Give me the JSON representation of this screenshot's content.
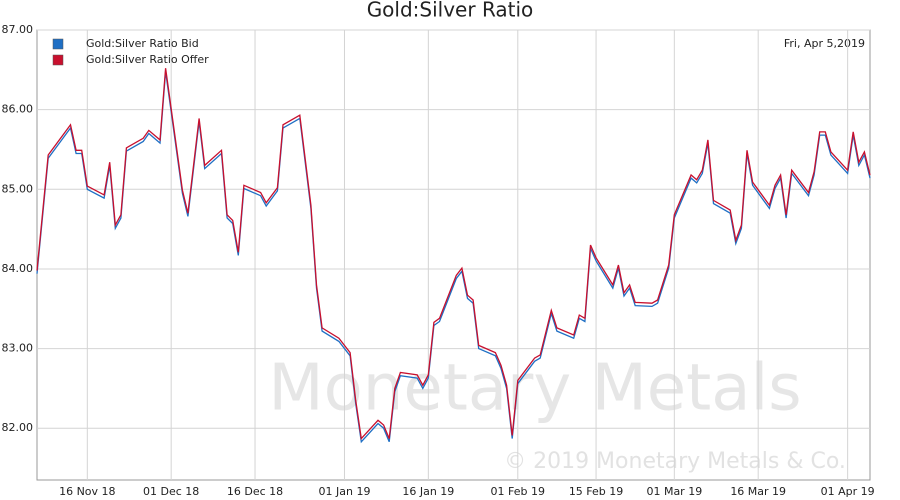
{
  "chart_data": {
    "type": "line",
    "title": "Gold:Silver Ratio",
    "annotation": "Fri, Apr 5,2019",
    "watermark": "Monetary Metals",
    "copyright": "© 2019 Monetary Metals & Co.",
    "x": [
      "2018-11-07",
      "2018-11-09",
      "2018-11-13",
      "2018-11-14",
      "2018-11-15",
      "2018-11-16",
      "2018-11-19",
      "2018-11-20",
      "2018-11-21",
      "2018-11-22",
      "2018-11-23",
      "2018-11-26",
      "2018-11-27",
      "2018-11-29",
      "2018-11-30",
      "2018-12-03",
      "2018-12-04",
      "2018-12-06",
      "2018-12-07",
      "2018-12-10",
      "2018-12-11",
      "2018-12-12",
      "2018-12-13",
      "2018-12-14",
      "2018-12-17",
      "2018-12-18",
      "2018-12-20",
      "2018-12-21",
      "2018-12-24",
      "2018-12-26",
      "2018-12-27",
      "2018-12-28",
      "2018-12-31",
      "2019-01-02",
      "2019-01-03",
      "2019-01-04",
      "2019-01-07",
      "2019-01-08",
      "2019-01-09",
      "2019-01-10",
      "2019-01-11",
      "2019-01-14",
      "2019-01-15",
      "2019-01-16",
      "2019-01-17",
      "2019-01-18",
      "2019-01-21",
      "2019-01-22",
      "2019-01-23",
      "2019-01-24",
      "2019-01-25",
      "2019-01-28",
      "2019-01-29",
      "2019-01-30",
      "2019-01-31",
      "2019-02-01",
      "2019-02-04",
      "2019-02-05",
      "2019-02-07",
      "2019-02-08",
      "2019-02-11",
      "2019-02-12",
      "2019-02-13",
      "2019-02-14",
      "2019-02-15",
      "2019-02-18",
      "2019-02-19",
      "2019-02-20",
      "2019-02-21",
      "2019-02-22",
      "2019-02-25",
      "2019-02-26",
      "2019-02-28",
      "2019-03-01",
      "2019-03-04",
      "2019-03-05",
      "2019-03-06",
      "2019-03-07",
      "2019-03-08",
      "2019-03-11",
      "2019-03-12",
      "2019-03-13",
      "2019-03-14",
      "2019-03-15",
      "2019-03-18",
      "2019-03-19",
      "2019-03-20",
      "2019-03-21",
      "2019-03-22",
      "2019-03-25",
      "2019-03-26",
      "2019-03-27",
      "2019-03-28",
      "2019-03-29",
      "2019-04-01",
      "2019-04-02",
      "2019-04-03",
      "2019-04-04",
      "2019-04-05"
    ],
    "series": [
      {
        "name": "Gold:Silver Ratio Bid",
        "color": "#1f6fc4",
        "values": [
          83.94,
          85.39,
          85.77,
          85.45,
          85.45,
          85.0,
          84.89,
          85.3,
          84.51,
          84.64,
          85.48,
          85.6,
          85.7,
          85.58,
          86.48,
          84.95,
          84.66,
          85.85,
          85.26,
          85.45,
          84.64,
          84.57,
          84.17,
          85.01,
          84.92,
          84.79,
          84.98,
          85.77,
          85.89,
          84.76,
          83.76,
          83.22,
          83.09,
          82.91,
          82.31,
          81.83,
          82.06,
          82.0,
          81.83,
          82.46,
          82.66,
          82.63,
          82.5,
          82.63,
          83.29,
          83.34,
          83.88,
          83.97,
          83.63,
          83.57,
          83.0,
          82.91,
          82.75,
          82.5,
          81.87,
          82.56,
          82.84,
          82.88,
          83.44,
          83.22,
          83.13,
          83.38,
          83.34,
          84.26,
          84.1,
          83.76,
          84.01,
          83.66,
          83.76,
          83.54,
          83.53,
          83.57,
          84.01,
          84.64,
          85.14,
          85.08,
          85.2,
          85.58,
          84.82,
          84.7,
          84.32,
          84.51,
          85.45,
          85.05,
          84.76,
          85.01,
          85.14,
          84.64,
          85.2,
          84.92,
          85.18,
          85.68,
          85.68,
          85.43,
          85.2,
          85.68,
          85.3,
          85.43,
          85.14
        ]
      },
      {
        "name": "Gold:Silver Ratio Offer",
        "color": "#c8102e",
        "values": [
          83.98,
          85.43,
          85.81,
          85.49,
          85.49,
          85.04,
          84.93,
          85.34,
          84.55,
          84.68,
          85.52,
          85.64,
          85.74,
          85.62,
          86.52,
          84.99,
          84.7,
          85.89,
          85.3,
          85.49,
          84.68,
          84.61,
          84.21,
          85.05,
          84.96,
          84.83,
          85.02,
          85.81,
          85.93,
          84.8,
          83.8,
          83.26,
          83.13,
          82.95,
          82.35,
          81.87,
          82.1,
          82.04,
          81.87,
          82.5,
          82.7,
          82.67,
          82.54,
          82.67,
          83.33,
          83.38,
          83.92,
          84.01,
          83.67,
          83.61,
          83.04,
          82.95,
          82.79,
          82.54,
          81.91,
          82.6,
          82.88,
          82.92,
          83.48,
          83.26,
          83.17,
          83.42,
          83.38,
          84.3,
          84.14,
          83.8,
          84.05,
          83.7,
          83.8,
          83.58,
          83.57,
          83.61,
          84.05,
          84.68,
          85.18,
          85.12,
          85.24,
          85.62,
          84.86,
          84.74,
          84.36,
          84.55,
          85.49,
          85.09,
          84.8,
          85.05,
          85.18,
          84.68,
          85.24,
          84.96,
          85.22,
          85.72,
          85.72,
          85.47,
          85.24,
          85.72,
          85.34,
          85.47,
          85.18
        ]
      }
    ],
    "xlim": [
      "2018-11-07",
      "2019-04-05"
    ],
    "xticks": [
      {
        "value": "2018-11-16",
        "label": "16 Nov 18"
      },
      {
        "value": "2018-12-01",
        "label": "01 Dec 18"
      },
      {
        "value": "2018-12-16",
        "label": "16 Dec 18"
      },
      {
        "value": "2019-01-01",
        "label": "01 Jan 19"
      },
      {
        "value": "2019-01-16",
        "label": "16 Jan 19"
      },
      {
        "value": "2019-02-01",
        "label": "01 Feb 19"
      },
      {
        "value": "2019-02-15",
        "label": "15 Feb 19"
      },
      {
        "value": "2019-03-01",
        "label": "01 Mar 19"
      },
      {
        "value": "2019-03-16",
        "label": "16 Mar 19"
      },
      {
        "value": "2019-04-01",
        "label": "01 Apr 19"
      }
    ],
    "ylim": [
      81.35,
      87.0
    ],
    "yticks": [
      {
        "value": 82,
        "label": "82.00"
      },
      {
        "value": 83,
        "label": "83.00"
      },
      {
        "value": 84,
        "label": "84.00"
      },
      {
        "value": 85,
        "label": "85.00"
      },
      {
        "value": 86,
        "label": "86.00"
      },
      {
        "value": 87,
        "label": "87.00"
      }
    ],
    "grid": true,
    "legend": "upper-left"
  }
}
